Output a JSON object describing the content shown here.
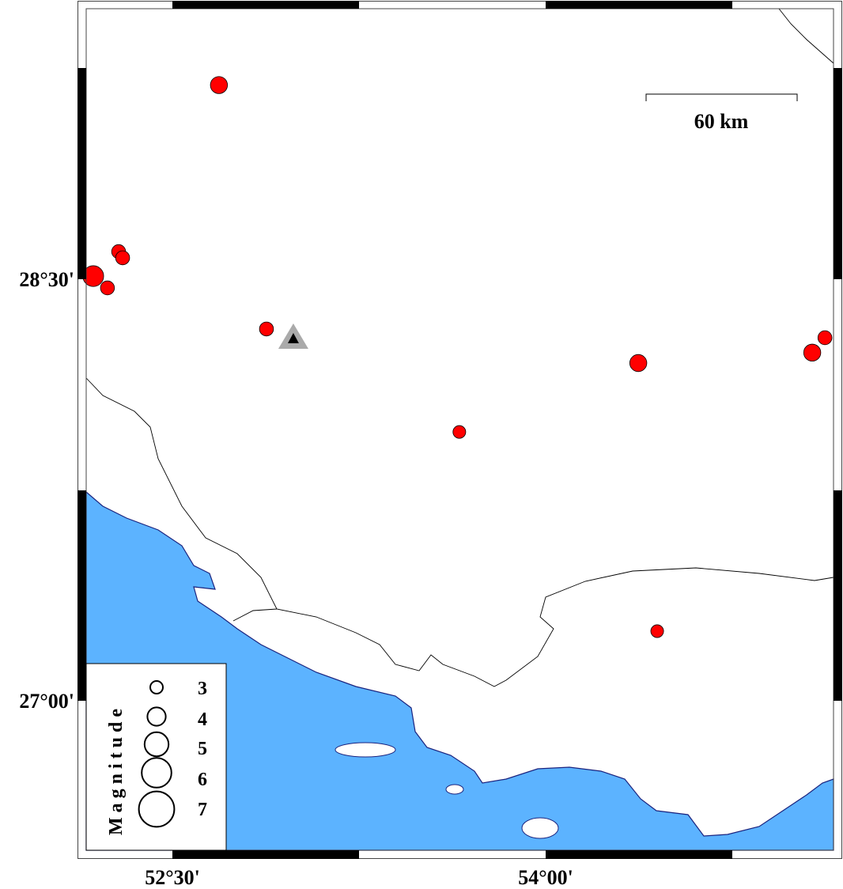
{
  "map": {
    "projection_extent": {
      "lon_min": 52.125,
      "lon_max": 55.125,
      "lat_min": 26.5,
      "lat_max": 29.72
    },
    "lon_ticks": [
      {
        "value": 52.5,
        "label": "52°30'"
      },
      {
        "value": 54.0,
        "label": "54°00'"
      }
    ],
    "lat_ticks": [
      {
        "value": 28.5,
        "label": "28°30'"
      },
      {
        "value": 27.0,
        "label": "27°00'"
      }
    ],
    "colors": {
      "sea": "#5cb3ff",
      "land": "#ffffff",
      "event": "#ff0000",
      "station": "#aaaaaa",
      "coastline": "#1a237e"
    },
    "scale_bar": {
      "label": "60 km"
    },
    "station": {
      "lon": 52.986,
      "lat": 28.292,
      "icon": "triangle"
    },
    "events": [
      {
        "lon": 52.687,
        "lat": 29.19,
        "mag": 3.1
      },
      {
        "lon": 52.284,
        "lat": 28.598,
        "mag": 2.6
      },
      {
        "lon": 52.3,
        "lat": 28.576,
        "mag": 2.6
      },
      {
        "lon": 52.182,
        "lat": 28.511,
        "mag": 3.7
      },
      {
        "lon": 52.239,
        "lat": 28.469,
        "mag": 2.6
      },
      {
        "lon": 52.878,
        "lat": 28.323,
        "mag": 2.6
      },
      {
        "lon": 54.372,
        "lat": 28.202,
        "mag": 3.1
      },
      {
        "lon": 55.071,
        "lat": 28.239,
        "mag": 3.1
      },
      {
        "lon": 55.122,
        "lat": 28.292,
        "mag": 2.6
      },
      {
        "lon": 53.653,
        "lat": 27.957,
        "mag": 2.4
      },
      {
        "lon": 54.448,
        "lat": 27.249,
        "mag": 2.4
      }
    ],
    "legend": {
      "title": "Magnitude",
      "entries": [
        {
          "mag": 3,
          "label": "3"
        },
        {
          "mag": 4,
          "label": "4"
        },
        {
          "mag": 5,
          "label": "5"
        },
        {
          "mag": 6,
          "label": "6"
        },
        {
          "mag": 7,
          "label": "7"
        }
      ]
    }
  }
}
